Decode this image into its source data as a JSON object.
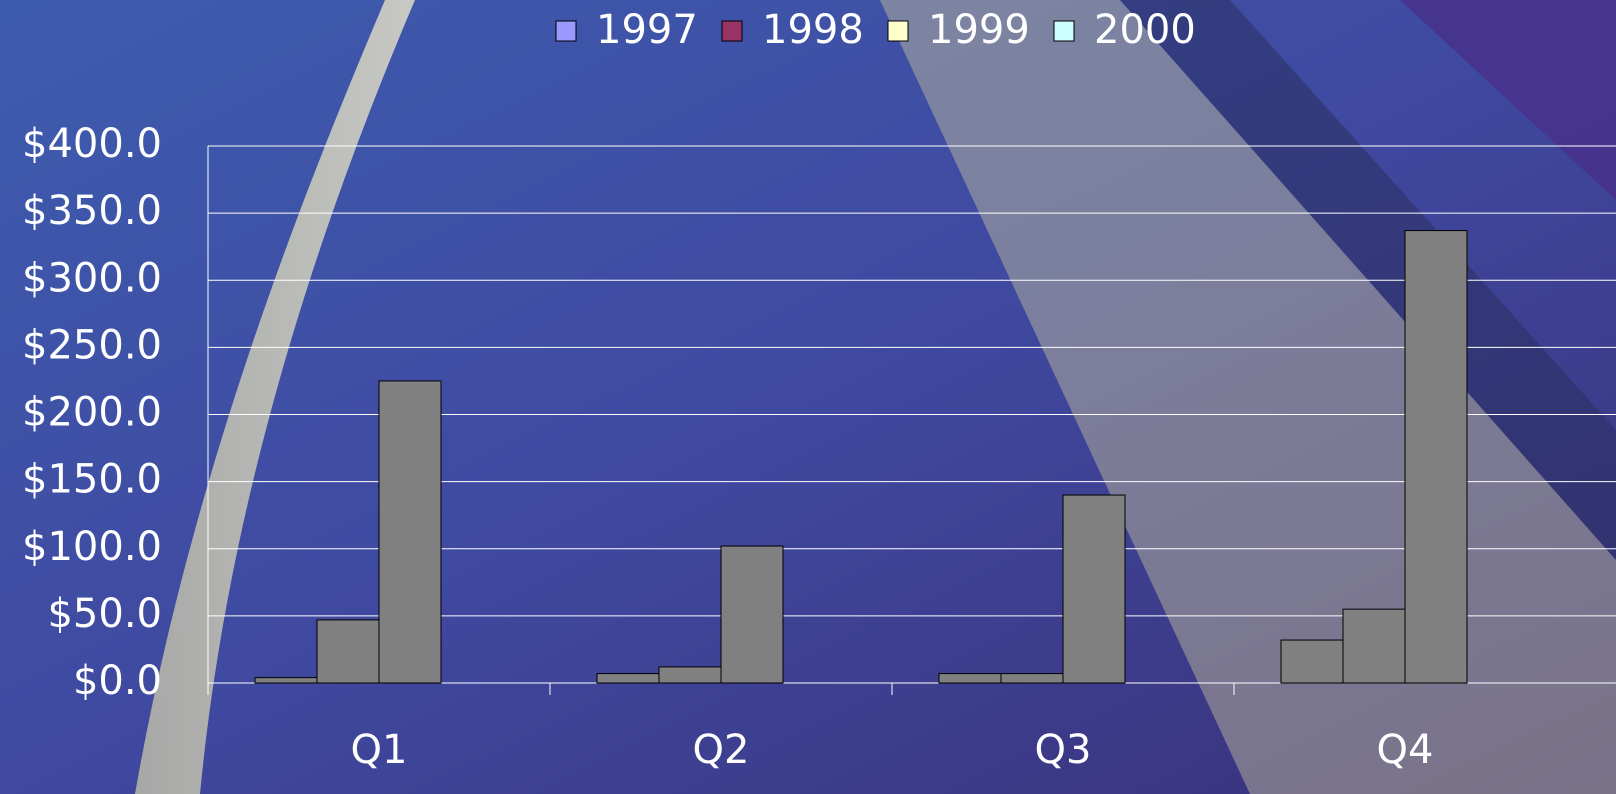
{
  "chart_data": {
    "type": "bar",
    "categories": [
      "Q1",
      "Q2",
      "Q3",
      "Q4"
    ],
    "series": [
      {
        "name": "1997",
        "color": "#9999ff",
        "values": [
          4,
          7,
          7,
          32
        ]
      },
      {
        "name": "1998",
        "color": "#993366",
        "values": [
          47,
          12,
          7,
          55
        ]
      },
      {
        "name": "1999",
        "color": "#ffffcc",
        "values": [
          225,
          102,
          140,
          337
        ]
      },
      {
        "name": "2000",
        "color": "#ccffff",
        "values": [
          0,
          0,
          0,
          0
        ]
      }
    ],
    "bar_fill": "#808080",
    "ylim": [
      0,
      400
    ],
    "yticks": [
      {
        "value": 0,
        "label": "$0.0"
      },
      {
        "value": 50,
        "label": "$50.0"
      },
      {
        "value": 100,
        "label": "$100.0"
      },
      {
        "value": 150,
        "label": "$150.0"
      },
      {
        "value": 200,
        "label": "$200.0"
      },
      {
        "value": 250,
        "label": "$250.0"
      },
      {
        "value": 300,
        "label": "$300.0"
      },
      {
        "value": 350,
        "label": "$350.0"
      },
      {
        "value": 400,
        "label": "$400.0"
      }
    ],
    "grid": true,
    "legend": "top"
  }
}
